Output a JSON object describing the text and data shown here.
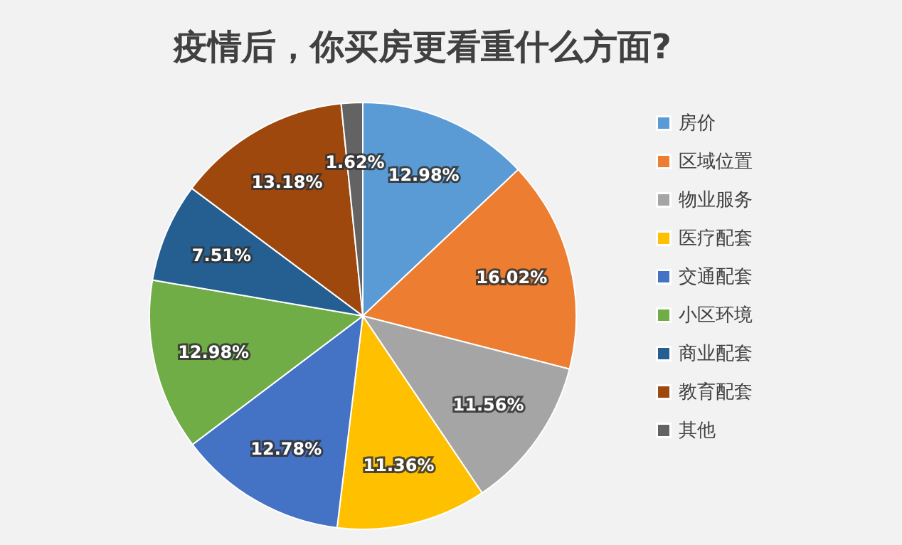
{
  "chart_data": {
    "type": "pie",
    "title": "疫情后，你买房更看重什么方面?",
    "categories": [
      "房价",
      "区域位置",
      "物业服务",
      "医疗配套",
      "交通配套",
      "小区环境",
      "商业配套",
      "教育配套",
      "其他"
    ],
    "values": [
      12.98,
      16.02,
      11.56,
      11.36,
      12.78,
      12.98,
      7.51,
      13.18,
      1.62
    ],
    "colors": [
      "#5b9bd5",
      "#ed7d31",
      "#a5a5a5",
      "#ffc000",
      "#4472c4",
      "#70ad47",
      "#255e91",
      "#9e480e",
      "#636363"
    ],
    "value_labels": [
      "12.98%",
      "16.02%",
      "11.56%",
      "11.36%",
      "12.78%",
      "12.98%",
      "7.51%",
      "13.18%",
      "1.62%"
    ],
    "legend": "right"
  }
}
